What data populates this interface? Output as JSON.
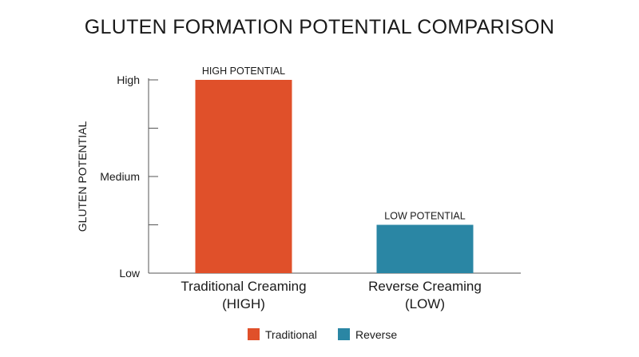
{
  "chart_data": {
    "type": "bar",
    "title": "GLUTEN FORMATION POTENTIAL COMPARISON",
    "ylabel": "GLUTEN POTENTIAL",
    "xlabel": "",
    "ylim": [
      0,
      4
    ],
    "y_ticks": [
      {
        "value": 0,
        "label": "Low"
      },
      {
        "value": 1,
        "label": ""
      },
      {
        "value": 2,
        "label": "Medium"
      },
      {
        "value": 3,
        "label": ""
      },
      {
        "value": 4,
        "label": "High"
      }
    ],
    "categories": [
      {
        "line1": "Traditional Creaming",
        "line2": "(HIGH)"
      },
      {
        "line1": "Reverse Creaming",
        "line2": "(LOW)"
      }
    ],
    "values": [
      4,
      1
    ],
    "data_labels": [
      "HIGH POTENTIAL",
      "LOW POTENTIAL"
    ],
    "colors": [
      "#e0502a",
      "#2a86a4"
    ],
    "legend": {
      "position": "bottom",
      "entries": [
        {
          "name": "Traditional",
          "color": "#e0502a"
        },
        {
          "name": "Reverse",
          "color": "#2a86a4"
        }
      ]
    },
    "grid": false
  }
}
